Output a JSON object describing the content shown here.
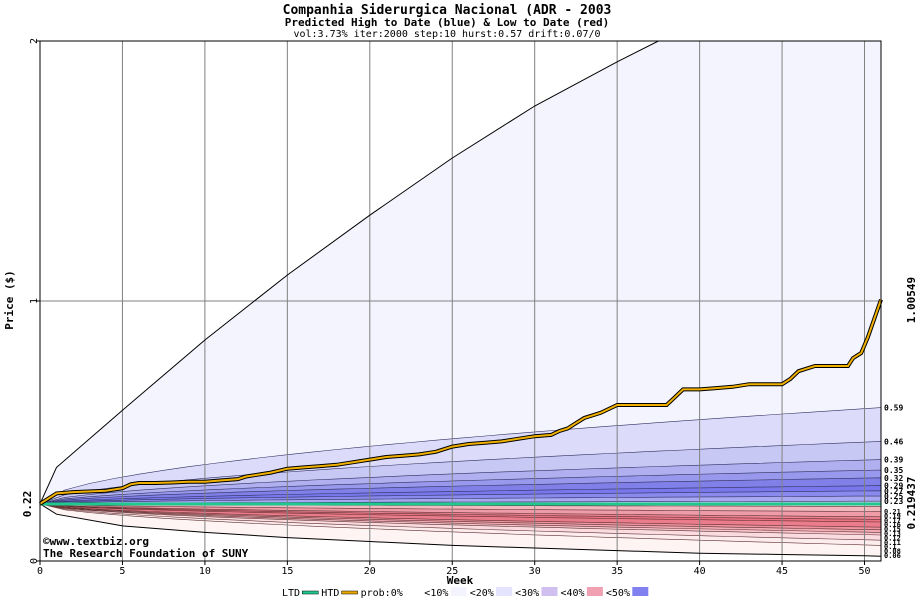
{
  "chart_data": {
    "type": "area",
    "title": "Companhia Siderurgica Nacional (ADR - 2003",
    "subtitle": "Predicted High to Date (blue) &  Low to Date (red)",
    "params": "vol:3.73% iter:2000 step:10 hurst:0.57 drift:0.07/0",
    "xlabel": "Week",
    "ylabel": "Price ($)",
    "xlim": [
      0,
      51
    ],
    "ylim": [
      0,
      2
    ],
    "x_ticks": [
      0,
      5,
      10,
      15,
      20,
      25,
      30,
      35,
      40,
      45,
      50
    ],
    "y_ticks": [
      0,
      1,
      2
    ],
    "grid": true,
    "start_value": 0.22,
    "start_value_label": "0.22",
    "htd_current_label": "1.00549",
    "ltd_current_label": "0.219437",
    "htd_current": 1.00549,
    "ltd_current": 0.219437,
    "watermark": [
      "©www.textbiz.org",
      "The Research Foundation of SUNY"
    ],
    "legend": {
      "placement": "bottom",
      "items": [
        {
          "label": "LTD",
          "color": "#20c890"
        },
        {
          "label": "HTD",
          "color": "#e8a800"
        },
        {
          "label": "prob:0%",
          "color": "#ffffff"
        },
        {
          "label": "<10%",
          "color": "#f4f4ff"
        },
        {
          "label": "<20%",
          "color": "#e4e4ff"
        },
        {
          "label": "<30%",
          "color": "#d0c0f0"
        },
        {
          "label": "<40%",
          "color": "#f0a0b0"
        },
        {
          "label": "<50%",
          "color": "#8080f0"
        }
      ]
    },
    "upper_right_labels": [
      "0.59",
      "0.46",
      "0.39",
      "0.35",
      "0.32",
      "0.29",
      "0.27",
      "0.25",
      "0.23"
    ],
    "upper_right_values": [
      0.59,
      0.46,
      0.39,
      0.35,
      0.32,
      0.29,
      0.27,
      0.25,
      0.23
    ],
    "lower_right_labels": [
      "0.21",
      "0.19",
      "0.17",
      "0.16",
      "0.15",
      "0.13",
      "0.12",
      "0.11",
      "0.1",
      "0.08",
      "0.06"
    ],
    "lower_right_values": [
      0.21,
      0.19,
      0.17,
      0.16,
      0.15,
      0.13,
      0.12,
      0.11,
      0.1,
      0.08,
      0.06
    ],
    "upper_envelope": {
      "x": [
        0,
        1,
        5,
        10,
        15,
        20,
        25,
        30,
        35,
        37.5,
        51
      ],
      "y": [
        0.22,
        0.36,
        0.58,
        0.85,
        1.1,
        1.33,
        1.55,
        1.75,
        1.92,
        2.0,
        2.0
      ]
    },
    "lower_envelope": {
      "x": [
        0,
        1,
        5,
        10,
        15,
        20,
        25,
        30,
        35,
        40,
        45,
        50,
        51
      ],
      "y": [
        0.22,
        0.18,
        0.135,
        0.11,
        0.09,
        0.075,
        0.06,
        0.05,
        0.04,
        0.03,
        0.025,
        0.02,
        0.018
      ]
    },
    "htd_path": {
      "x": [
        0,
        1,
        2,
        4,
        5,
        5.5,
        6,
        7,
        8,
        9,
        10,
        11,
        12,
        12.5,
        13,
        14,
        15,
        16,
        17,
        18,
        19,
        20,
        21,
        22,
        23,
        24,
        25,
        26,
        27,
        28,
        29,
        30,
        31,
        31.5,
        32,
        32.5,
        33,
        34,
        35,
        36,
        37,
        38,
        38.5,
        39,
        40,
        41,
        42,
        43,
        44,
        45,
        45.5,
        46,
        47,
        48,
        49,
        49.3,
        49.8,
        50.2,
        51
      ],
      "y": [
        0.22,
        0.26,
        0.265,
        0.27,
        0.28,
        0.295,
        0.3,
        0.3,
        0.302,
        0.305,
        0.305,
        0.31,
        0.315,
        0.325,
        0.33,
        0.34,
        0.355,
        0.36,
        0.365,
        0.37,
        0.38,
        0.39,
        0.4,
        0.405,
        0.41,
        0.42,
        0.44,
        0.45,
        0.455,
        0.46,
        0.47,
        0.48,
        0.485,
        0.5,
        0.51,
        0.53,
        0.55,
        0.57,
        0.6,
        0.6,
        0.6,
        0.6,
        0.63,
        0.66,
        0.66,
        0.665,
        0.67,
        0.68,
        0.68,
        0.68,
        0.7,
        0.73,
        0.75,
        0.75,
        0.75,
        0.78,
        0.8,
        0.86,
        1.00549
      ]
    },
    "upper_bands": [
      {
        "name": "0.59",
        "y_end": 0.59,
        "fill": "#dcdcfa"
      },
      {
        "name": "0.46",
        "y_end": 0.46,
        "fill": "#c8c8f5"
      },
      {
        "name": "0.39",
        "y_end": 0.39,
        "fill": "#b0b0f0"
      },
      {
        "name": "0.35",
        "y_end": 0.35,
        "fill": "#9898ec"
      },
      {
        "name": "0.32",
        "y_end": 0.32,
        "fill": "#8080e8"
      },
      {
        "name": "0.29",
        "y_end": 0.29,
        "fill": "#7878ec"
      },
      {
        "name": "0.27",
        "y_end": 0.27,
        "fill": "#8a8aee"
      },
      {
        "name": "0.25",
        "y_end": 0.25,
        "fill": "#a8a8f2"
      },
      {
        "name": "0.23",
        "y_end": 0.23,
        "fill": "#d0d0f8"
      }
    ],
    "lower_bands": [
      {
        "name": "0.21",
        "y_end": 0.21,
        "fill": "#f8d8dc"
      },
      {
        "name": "0.19",
        "y_end": 0.19,
        "fill": "#f2b8c0"
      },
      {
        "name": "0.17",
        "y_end": 0.17,
        "fill": "#ee9ca8"
      },
      {
        "name": "0.16",
        "y_end": 0.16,
        "fill": "#ea8494"
      },
      {
        "name": "0.15",
        "y_end": 0.15,
        "fill": "#e87484"
      },
      {
        "name": "0.13",
        "y_end": 0.13,
        "fill": "#ea7c8c"
      },
      {
        "name": "0.12",
        "y_end": 0.12,
        "fill": "#ee94a0"
      },
      {
        "name": "0.11",
        "y_end": 0.11,
        "fill": "#f2acb6"
      },
      {
        "name": "0.1",
        "y_end": 0.1,
        "fill": "#f6c4cc"
      },
      {
        "name": "0.08",
        "y_end": 0.08,
        "fill": "#fadce0"
      },
      {
        "name": "0.06",
        "y_end": 0.06,
        "fill": "#fcecee"
      }
    ]
  }
}
